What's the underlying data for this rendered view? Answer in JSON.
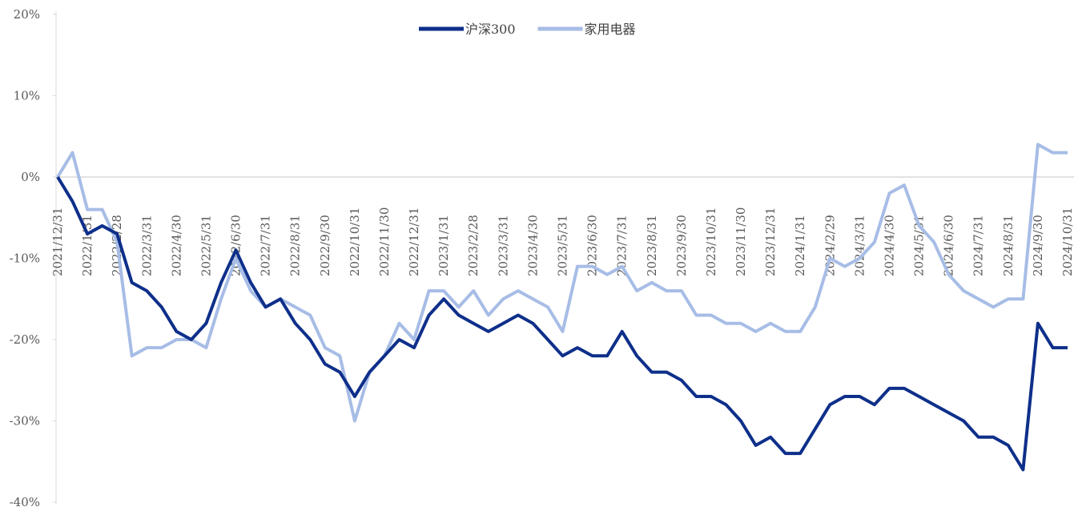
{
  "chart_data": {
    "type": "line",
    "categories": [
      "2021/12/31",
      null,
      "2022/1/31",
      null,
      "2022/2/28",
      null,
      "2022/3/31",
      null,
      "2022/4/30",
      null,
      "2022/5/31",
      null,
      "2022/6/30",
      null,
      "2022/7/31",
      null,
      "2022/8/31",
      null,
      "2022/9/30",
      null,
      "2022/10/31",
      null,
      "2022/11/30",
      null,
      "2022/12/31",
      null,
      "2023/1/31",
      null,
      "2023/2/28",
      null,
      "2023/3/31",
      null,
      "2023/4/30",
      null,
      "2023/5/31",
      null,
      "2023/6/30",
      null,
      "2023/7/31",
      null,
      "2023/8/31",
      null,
      "2023/9/30",
      null,
      "2023/10/31",
      null,
      "2023/11/30",
      null,
      "2023/12/31",
      null,
      "2024/1/31",
      null,
      "2024/2/29",
      null,
      "2024/3/31",
      null,
      "2024/4/30",
      null,
      "2024/5/31",
      null,
      "2024/6/30",
      null,
      "2024/7/31",
      null,
      "2024/8/31",
      null,
      "2024/9/30",
      null,
      "2024/10/31"
    ],
    "series": [
      {
        "name": "沪深300",
        "color": "#0e2f8a",
        "values": [
          0,
          -3,
          -7,
          -6,
          -7,
          -13,
          -14,
          -16,
          -19,
          -20,
          -18,
          -13,
          -9,
          -13,
          -16,
          -15,
          -18,
          -20,
          -23,
          -24,
          -27,
          -24,
          -22,
          -20,
          -21,
          -17,
          -15,
          -17,
          -18,
          -19,
          -18,
          -17,
          -18,
          -20,
          -22,
          -21,
          -22,
          -22,
          -19,
          -22,
          -24,
          -24,
          -25,
          -27,
          -27,
          -28,
          -30,
          -33,
          -32,
          -34,
          -34,
          -31,
          -28,
          -27,
          -27,
          -28,
          -26,
          -26,
          -27,
          -28,
          -29,
          -30,
          -32,
          -32,
          -33,
          -36,
          -18,
          -21,
          -21
        ]
      },
      {
        "name": "家用电器",
        "color": "#a7bde6",
        "values": [
          0,
          3,
          -4,
          -4,
          -8,
          -22,
          -21,
          -21,
          -20,
          -20,
          -21,
          -15,
          -10,
          -14,
          -16,
          -15,
          -16,
          -17,
          -21,
          -22,
          -30,
          -24,
          -22,
          -18,
          -20,
          -14,
          -14,
          -16,
          -14,
          -17,
          -15,
          -14,
          -15,
          -16,
          -19,
          -11,
          -11,
          -12,
          -11,
          -14,
          -13,
          -14,
          -14,
          -17,
          -17,
          -18,
          -18,
          -19,
          -18,
          -19,
          -19,
          -16,
          -10,
          -11,
          -10,
          -8,
          -2,
          -1,
          -6,
          -8,
          -12,
          -14,
          -15,
          -16,
          -15,
          -15,
          4,
          3,
          3
        ]
      }
    ],
    "ylim": [
      -40,
      20
    ],
    "yticks": [
      {
        "value": -40,
        "label": "-40%"
      },
      {
        "value": -30,
        "label": "-30%"
      },
      {
        "value": -20,
        "label": "-20%"
      },
      {
        "value": -10,
        "label": "-10%"
      },
      {
        "value": 0,
        "label": "0%"
      },
      {
        "value": 10,
        "label": "10%"
      },
      {
        "value": 20,
        "label": "20%"
      }
    ],
    "legend": "top"
  }
}
